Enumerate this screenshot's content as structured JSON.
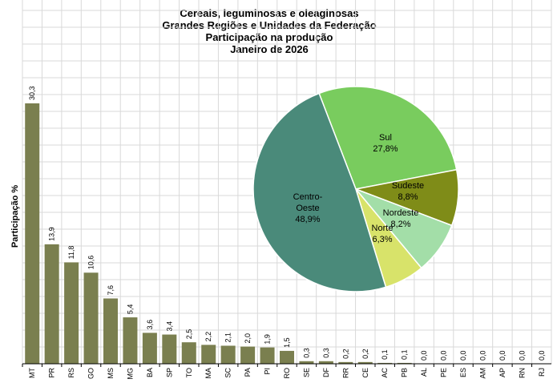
{
  "title_lines": [
    "Cereais, leguminosas e oleaginosas",
    "Grandes Regiões e Unidades da Federação",
    "Participação na produção",
    "Janeiro de 2026"
  ],
  "colors": {
    "bar": "#7a7f4f",
    "grid": "#d9d9d9",
    "axis": "#000000"
  },
  "chart_data": [
    {
      "type": "bar",
      "ylabel": "Participação %",
      "xlabel": "",
      "ylim": [
        0,
        30.3
      ],
      "grid": true,
      "categories": [
        "MT",
        "PR",
        "RS",
        "GO",
        "MS",
        "MG",
        "BA",
        "SP",
        "TO",
        "MA",
        "SC",
        "PA",
        "PI",
        "RO",
        "SE",
        "DF",
        "RR",
        "CE",
        "AC",
        "PB",
        "AL",
        "PE",
        "ES",
        "AM",
        "AP",
        "RN",
        "RJ"
      ],
      "values": [
        30.3,
        13.9,
        11.8,
        10.6,
        7.6,
        5.4,
        3.6,
        3.4,
        2.5,
        2.2,
        2.1,
        2.0,
        1.9,
        1.5,
        0.3,
        0.3,
        0.2,
        0.2,
        0.1,
        0.1,
        0.0,
        0.0,
        0.0,
        0.0,
        0.0,
        0.0,
        0.0
      ],
      "value_labels": [
        "30,3",
        "13,9",
        "11,8",
        "10,6",
        "7,6",
        "5,4",
        "3,6",
        "3,4",
        "2,5",
        "2,2",
        "2,1",
        "2,0",
        "1,9",
        "1,5",
        "0,3",
        "0,3",
        "0,2",
        "0,2",
        "0,1",
        "0,1",
        "0,0",
        "0,0",
        "0,0",
        "0,0",
        "0,0",
        "0,0",
        "0,0"
      ]
    },
    {
      "type": "pie",
      "slices": [
        {
          "label_lines": [
            "Centro-",
            "Oeste"
          ],
          "value": 48.9,
          "value_label": "48,9%",
          "color": "#4a8a7a"
        },
        {
          "label_lines": [
            "Sul"
          ],
          "value": 27.8,
          "value_label": "27,8%",
          "color": "#79cc5e"
        },
        {
          "label_lines": [
            "Sudeste"
          ],
          "value": 8.8,
          "value_label": "8,8%",
          "color": "#7f8c18"
        },
        {
          "label_lines": [
            "Nordeste"
          ],
          "value": 8.2,
          "value_label": "8,2%",
          "color": "#a3dea8"
        },
        {
          "label_lines": [
            "Norte"
          ],
          "value": 6.3,
          "value_label": "6,3%",
          "color": "#d8e36a"
        }
      ]
    }
  ]
}
